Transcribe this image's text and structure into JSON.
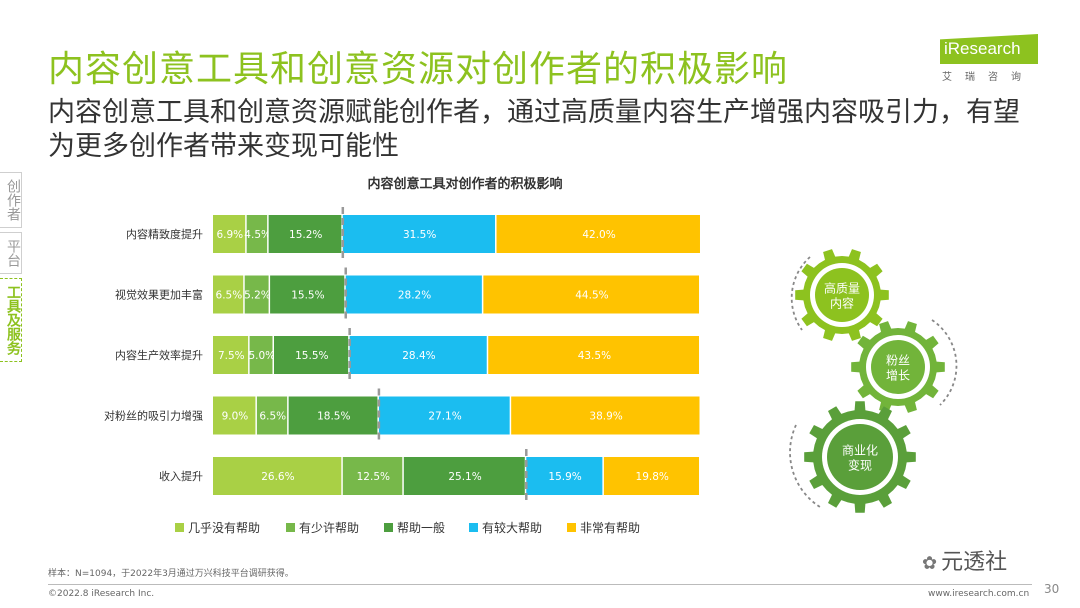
{
  "page": {
    "title": "内容创意工具和创意资源对创作者的积极影响",
    "subtitle": "内容创意工具和创意资源赋能创作者，通过高质量内容生产增强内容吸引力，有望为更多创作者带来变现可能性",
    "logo_brand": "iResearch",
    "logo_cn": "艾瑞咨询",
    "footnote": "样本：N=1094，于2022年3月通过万兴科技平台调研获得。",
    "copyright": "©2022.8 iResearch Inc.",
    "website": "www.iresearch.com.cn",
    "page_number": "30",
    "watermark": "元透社"
  },
  "sidenav": [
    {
      "label": "创作者",
      "active": false
    },
    {
      "label": "平台",
      "active": false
    },
    {
      "label": "工具及服务",
      "active": true
    }
  ],
  "gears": [
    {
      "label": "高质量\n内容",
      "color": "#8dc21f"
    },
    {
      "label": "粉丝\n增长",
      "color": "#72b43a"
    },
    {
      "label": "商业化\n变现",
      "color": "#5a9f3a"
    }
  ],
  "chart_data": {
    "type": "bar",
    "orientation": "horizontal-stacked-100",
    "title": "内容创意工具对创作者的积极影响",
    "categories": [
      "内容精致度提升",
      "视觉效果更加丰富",
      "内容生产效率提升",
      "对粉丝的吸引力增强",
      "收入提升"
    ],
    "series": [
      {
        "name": "几乎没有帮助",
        "color": "#a9d045",
        "values": [
          6.9,
          6.5,
          7.5,
          9.0,
          26.6
        ]
      },
      {
        "name": "有少许帮助",
        "color": "#77b84a",
        "values": [
          4.5,
          5.2,
          5.0,
          6.5,
          12.5
        ]
      },
      {
        "name": "帮助一般",
        "color": "#4d9e3f",
        "values": [
          15.2,
          15.5,
          15.5,
          18.5,
          25.1
        ]
      },
      {
        "name": "有较大帮助",
        "color": "#1bbdf0",
        "values": [
          31.5,
          28.2,
          28.4,
          27.1,
          15.9
        ]
      },
      {
        "name": "非常有帮助",
        "color": "#ffc300",
        "values": [
          42.0,
          44.5,
          43.5,
          38.9,
          19.8
        ]
      }
    ],
    "value_suffix": "%",
    "xlim": [
      0,
      100
    ],
    "legend_position": "bottom",
    "dashed_divider": "after 帮助一般"
  }
}
